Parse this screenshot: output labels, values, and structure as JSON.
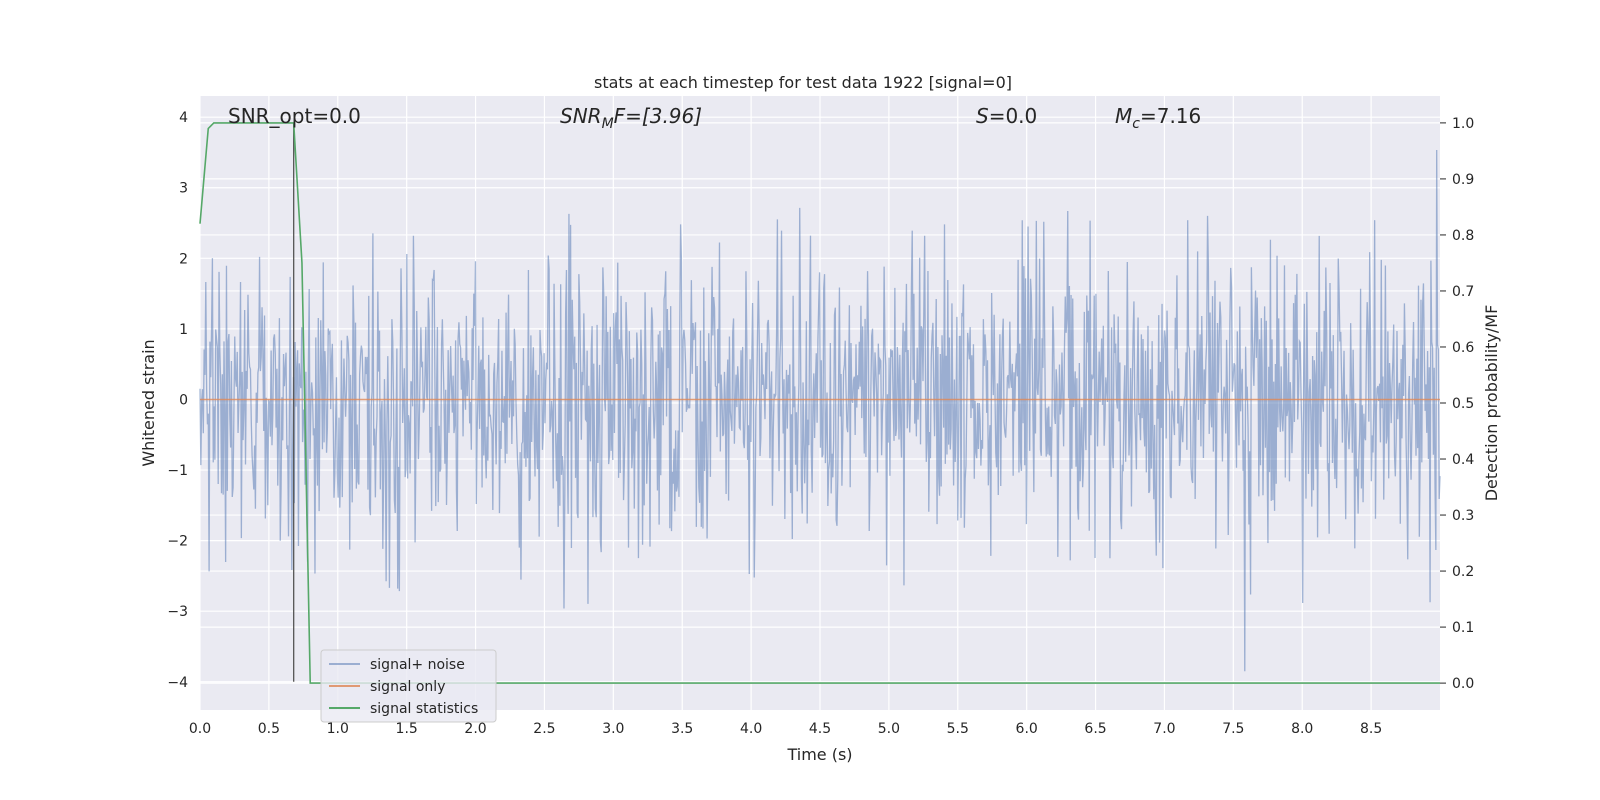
{
  "chart_data": {
    "type": "line",
    "title": "stats at each timestep for test data 1922 [signal=0]",
    "xlabel": "Time (s)",
    "ylabel": "Whitened strain",
    "ylabel_right": "Detection probability/MF",
    "xlim": [
      0.0,
      9.0
    ],
    "ylim": [
      -4.4,
      4.3
    ],
    "ylim_right": [
      -0.048,
      1.048
    ],
    "x_ticks": [
      "0.0",
      "0.5",
      "1.0",
      "1.5",
      "2.0",
      "2.5",
      "3.0",
      "3.5",
      "4.0",
      "4.5",
      "5.0",
      "5.5",
      "6.0",
      "6.5",
      "7.0",
      "7.5",
      "8.0",
      "8.5"
    ],
    "y_ticks": [
      "4",
      "3",
      "2",
      "1",
      "0",
      "−1",
      "−2",
      "−3",
      "−4"
    ],
    "y_ticks_right": [
      "1.0",
      "0.9",
      "0.8",
      "0.7",
      "0.6",
      "0.5",
      "0.4",
      "0.3",
      "0.2",
      "0.1",
      "0.0"
    ],
    "annotations": {
      "snr_opt": "SNR_opt=0.0",
      "snr_mf_sym": "SNR",
      "snr_mf_sub": "M",
      "snr_mf_rest": "F=[3.96]",
      "s_sym": "S",
      "s_rest": "=0.0",
      "mc_sym": "M",
      "mc_sub": "c",
      "mc_rest": "=7.16"
    },
    "legend": {
      "position": "lower-left",
      "entries": [
        "signal+ noise",
        "signal only",
        "signal statistics"
      ]
    },
    "series": [
      {
        "name": "signal+ noise",
        "color": "#4c72b0",
        "axis": "left",
        "description": "whitened noise strain, approx. Gaussian with std ~1, sampled densely over 0-9 s",
        "std": 1.0,
        "n_samples": 1500,
        "max": 3.9,
        "min": -4.0
      },
      {
        "name": "signal only",
        "color": "#dd8452",
        "axis": "left",
        "x": [
          0.0,
          9.0
        ],
        "y": [
          0.0,
          0.0
        ]
      },
      {
        "name": "signal statistics",
        "color": "#55a868",
        "axis": "right",
        "x": [
          0.0,
          0.06,
          0.1,
          0.2,
          0.4,
          0.6,
          0.68,
          0.74,
          0.8,
          9.0
        ],
        "y": [
          0.82,
          0.99,
          1.0,
          1.0,
          1.0,
          1.0,
          1.0,
          0.75,
          0.0,
          0.0
        ]
      },
      {
        "name": "marker",
        "color": "#555555",
        "axis": "left",
        "x": [
          0.68,
          0.68
        ],
        "y": [
          -4.0,
          3.9
        ]
      }
    ]
  }
}
